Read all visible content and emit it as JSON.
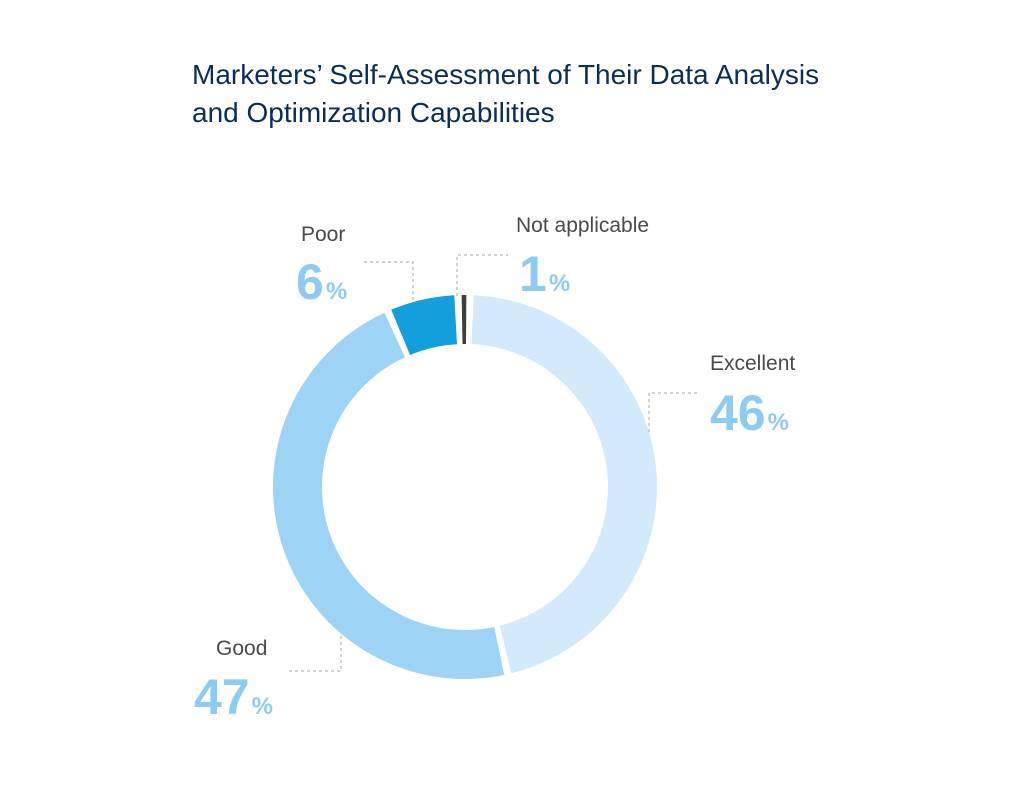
{
  "chart_data": {
    "type": "pie",
    "title_lines": [
      "Marketers’ Self-Assessment of Their Data Analysis",
      "and Optimization Capabilities"
    ],
    "unit": "%",
    "slices": [
      {
        "label": "Excellent",
        "value": 46,
        "color": "#d3eafb",
        "text_color": "#8ecbf2"
      },
      {
        "label": "Good",
        "value": 47,
        "color": "#9dd3f4",
        "text_color": "#8ecbf2"
      },
      {
        "label": "Poor",
        "value": 6,
        "color": "#139fdb",
        "text_color": "#8ecbf2"
      },
      {
        "label": "Not applicable",
        "value": 1,
        "color": "#3e3e3e",
        "text_color": "#8ecbf2"
      }
    ]
  }
}
